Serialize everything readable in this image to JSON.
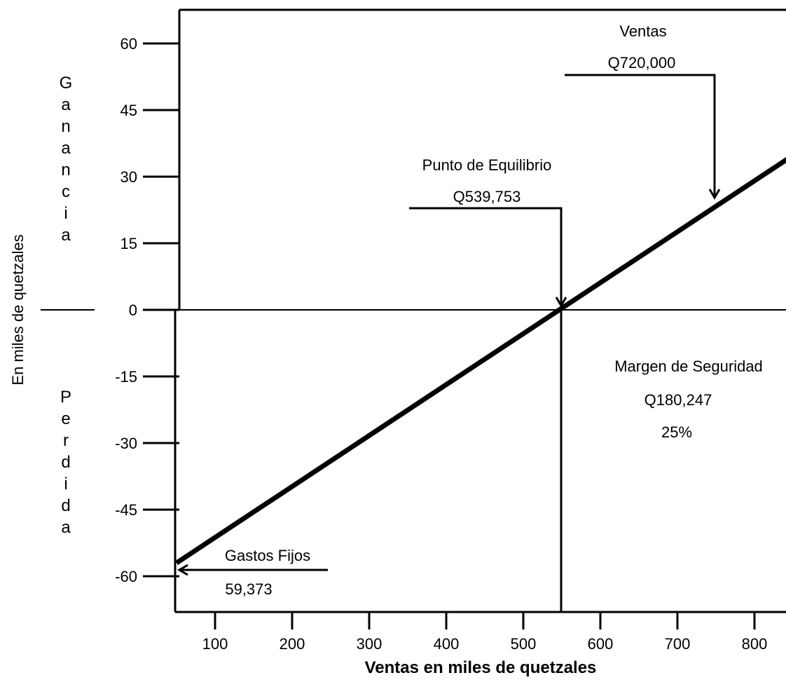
{
  "chart_data": {
    "type": "line",
    "title": "",
    "xlabel": "Ventas en miles de quetzales",
    "ylabel": "En miles de quetzales",
    "ylabel_upper": "Ganancia",
    "ylabel_lower": "Perdida",
    "xlim": [
      50,
      850
    ],
    "ylim": [
      -67,
      67
    ],
    "x_ticks": [
      100,
      200,
      300,
      400,
      500,
      600,
      700,
      800
    ],
    "y_ticks": [
      60,
      45,
      30,
      15,
      0,
      -15,
      -30,
      -45,
      -60
    ],
    "grid": false,
    "legend": "none",
    "series": [
      {
        "x": [
          50,
          850
        ],
        "y": [
          -57,
          34.8
        ]
      }
    ],
    "reference_lines": {
      "zero_profit": 0,
      "break_even_x": 550
    },
    "annotations": {
      "break_even": {
        "title": "Punto de Equilibrio",
        "value": "Q539,753",
        "x": 550,
        "y": 0
      },
      "sales": {
        "title": "Ventas",
        "value": "Q720,000",
        "x": 745,
        "y": 24
      },
      "safety_margin": {
        "title": "Margen de Seguridad",
        "value": "Q180,247",
        "percent": "25%"
      },
      "fixed_costs": {
        "title": "Gastos Fijos",
        "value": "59,373",
        "x": 50,
        "y": -58
      }
    }
  }
}
